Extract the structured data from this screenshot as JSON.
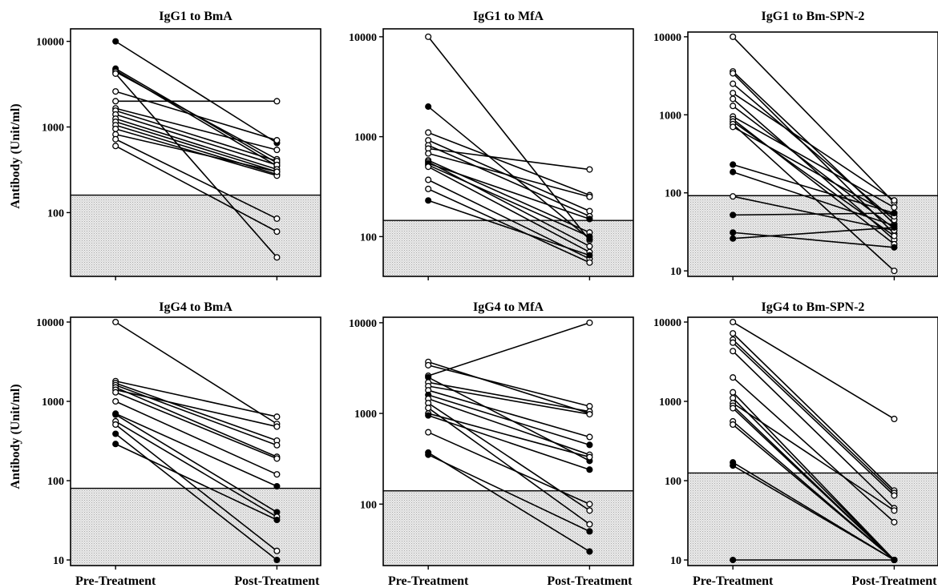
{
  "chart_data": [
    {
      "type": "line",
      "title": "IgG1 to BmA",
      "ylabel": "Antibody (Unit/ml)",
      "xlabel": "",
      "scale": "log",
      "ylim": [
        18,
        14000
      ],
      "yticks": [
        100,
        1000,
        10000
      ],
      "tick_labels": [
        "100",
        "1000",
        "10000"
      ],
      "categories": [
        "Pre-Treatment",
        "Post-Treatment"
      ],
      "show_category_labels": false,
      "cutoff": 160,
      "series": [
        {
          "values": [
            10000,
            650
          ],
          "filled": true
        },
        {
          "values": [
            4800,
            380
          ],
          "filled": true
        },
        {
          "values": [
            4600,
            350
          ],
          "filled": true
        },
        {
          "values": [
            4400,
            420
          ],
          "filled": false
        },
        {
          "values": [
            4200,
            30
          ],
          "filled": false
        },
        {
          "values": [
            2600,
            700
          ],
          "filled": false
        },
        {
          "values": [
            2000,
            2000
          ],
          "filled": false
        },
        {
          "values": [
            1650,
            540
          ],
          "filled": false
        },
        {
          "values": [
            1550,
            400
          ],
          "filled": false
        },
        {
          "values": [
            1400,
            360
          ],
          "filled": false
        },
        {
          "values": [
            1250,
            320
          ],
          "filled": false
        },
        {
          "values": [
            1150,
            300
          ],
          "filled": false
        },
        {
          "values": [
            1050,
            280
          ],
          "filled": false
        },
        {
          "values": [
            950,
            270
          ],
          "filled": false
        },
        {
          "values": [
            820,
            300
          ],
          "filled": false
        },
        {
          "values": [
            720,
            85
          ],
          "filled": false
        },
        {
          "values": [
            600,
            60
          ],
          "filled": false
        }
      ]
    },
    {
      "type": "line",
      "title": "IgG1 to MfA",
      "ylabel": "",
      "xlabel": "",
      "scale": "log",
      "ylim": [
        40,
        12000
      ],
      "yticks": [
        100,
        1000,
        10000
      ],
      "tick_labels": [
        "100",
        "1000",
        "10000"
      ],
      "categories": [
        "Pre-Treatment",
        "Post-Treatment"
      ],
      "show_category_labels": false,
      "cutoff": 145,
      "series": [
        {
          "values": [
            10000,
            92
          ],
          "filled": false
        },
        {
          "values": [
            2000,
            95
          ],
          "filled": true
        },
        {
          "values": [
            1100,
            260
          ],
          "filled": false
        },
        {
          "values": [
            920,
            180
          ],
          "filled": false
        },
        {
          "values": [
            820,
            160
          ],
          "filled": false
        },
        {
          "values": [
            760,
            470
          ],
          "filled": false
        },
        {
          "values": [
            680,
            250
          ],
          "filled": false
        },
        {
          "values": [
            580,
            110
          ],
          "filled": false
        },
        {
          "values": [
            560,
            80
          ],
          "filled": false
        },
        {
          "values": [
            540,
            150
          ],
          "filled": true
        },
        {
          "values": [
            520,
            100
          ],
          "filled": true
        },
        {
          "values": [
            500,
            70
          ],
          "filled": false
        },
        {
          "values": [
            370,
            60
          ],
          "filled": false
        },
        {
          "values": [
            300,
            55
          ],
          "filled": false
        },
        {
          "values": [
            230,
            65
          ],
          "filled": true
        }
      ]
    },
    {
      "type": "line",
      "title": "IgG1 to Bm-SPN-2",
      "ylabel": "",
      "xlabel": "",
      "scale": "log",
      "ylim": [
        8.5,
        11500
      ],
      "yticks": [
        10,
        100,
        1000,
        10000
      ],
      "tick_labels": [
        "10",
        "100",
        "1000",
        "10000"
      ],
      "categories": [
        "Pre-Treatment",
        "Post-Treatment"
      ],
      "show_category_labels": false,
      "cutoff": 92,
      "series": [
        {
          "values": [
            10000,
            75
          ],
          "filled": false
        },
        {
          "values": [
            3600,
            40
          ],
          "filled": false
        },
        {
          "values": [
            3400,
            30
          ],
          "filled": false
        },
        {
          "values": [
            2500,
            45
          ],
          "filled": false
        },
        {
          "values": [
            1900,
            80
          ],
          "filled": false
        },
        {
          "values": [
            1600,
            25
          ],
          "filled": false
        },
        {
          "values": [
            1300,
            35
          ],
          "filled": false
        },
        {
          "values": [
            950,
            65
          ],
          "filled": false
        },
        {
          "values": [
            880,
            22
          ],
          "filled": false
        },
        {
          "values": [
            820,
            28
          ],
          "filled": false
        },
        {
          "values": [
            760,
            10
          ],
          "filled": false
        },
        {
          "values": [
            700,
            50
          ],
          "filled": false
        },
        {
          "values": [
            230,
            55
          ],
          "filled": true
        },
        {
          "values": [
            185,
            38
          ],
          "filled": true
        },
        {
          "values": [
            90,
            33
          ],
          "filled": false
        },
        {
          "values": [
            52,
            55
          ],
          "filled": true
        },
        {
          "values": [
            31,
            20
          ],
          "filled": true
        },
        {
          "values": [
            26,
            36
          ],
          "filled": true
        }
      ]
    },
    {
      "type": "line",
      "title": "IgG4 to BmA",
      "ylabel": "Antibody (Unit/ml)",
      "xlabel": "",
      "scale": "log",
      "ylim": [
        8.5,
        11500
      ],
      "yticks": [
        10,
        100,
        1000,
        10000
      ],
      "tick_labels": [
        "10",
        "100",
        "1000",
        "10000"
      ],
      "categories": [
        "Pre-Treatment",
        "Post-Treatment"
      ],
      "show_category_labels": true,
      "cutoff": 80,
      "series": [
        {
          "values": [
            10000,
            520
          ],
          "filled": false
        },
        {
          "values": [
            1800,
            640
          ],
          "filled": false
        },
        {
          "values": [
            1700,
            320
          ],
          "filled": false
        },
        {
          "values": [
            1600,
            280
          ],
          "filled": false
        },
        {
          "values": [
            1500,
            200
          ],
          "filled": false
        },
        {
          "values": [
            1400,
            480
          ],
          "filled": false
        },
        {
          "values": [
            1300,
            190
          ],
          "filled": false
        },
        {
          "values": [
            1000,
            120
          ],
          "filled": false
        },
        {
          "values": [
            700,
            85
          ],
          "filled": true
        },
        {
          "values": [
            680,
            40
          ],
          "filled": true
        },
        {
          "values": [
            560,
            35
          ],
          "filled": false
        },
        {
          "values": [
            510,
            13
          ],
          "filled": false
        },
        {
          "values": [
            390,
            10
          ],
          "filled": true
        },
        {
          "values": [
            290,
            32
          ],
          "filled": true
        }
      ]
    },
    {
      "type": "line",
      "title": "IgG4 to MfA",
      "ylabel": "",
      "xlabel": "",
      "scale": "log",
      "ylim": [
        21,
        11500
      ],
      "yticks": [
        100,
        1000,
        10000
      ],
      "tick_labels": [
        "100",
        "1000",
        "10000"
      ],
      "categories": [
        "Pre-Treatment",
        "Post-Treatment"
      ],
      "show_category_labels": true,
      "cutoff": 140,
      "series": [
        {
          "values": [
            3700,
            1000
          ],
          "filled": false
        },
        {
          "values": [
            3400,
            1200
          ],
          "filled": false
        },
        {
          "values": [
            2600,
            10000
          ],
          "filled": false
        },
        {
          "values": [
            2500,
            300
          ],
          "filled": true
        },
        {
          "values": [
            2200,
            1050
          ],
          "filled": false
        },
        {
          "values": [
            2000,
            980
          ],
          "filled": false
        },
        {
          "values": [
            1800,
            550
          ],
          "filled": false
        },
        {
          "values": [
            1600,
            450
          ],
          "filled": true
        },
        {
          "values": [
            1450,
            350
          ],
          "filled": false
        },
        {
          "values": [
            1300,
            85
          ],
          "filled": false
        },
        {
          "values": [
            1150,
            60
          ],
          "filled": false
        },
        {
          "values": [
            1000,
            330
          ],
          "filled": false
        },
        {
          "values": [
            950,
            240
          ],
          "filled": true
        },
        {
          "values": [
            620,
            100
          ],
          "filled": false
        },
        {
          "values": [
            370,
            30
          ],
          "filled": true
        },
        {
          "values": [
            350,
            50
          ],
          "filled": true
        }
      ]
    },
    {
      "type": "line",
      "title": "IgG4 to Bm-SPN-2",
      "ylabel": "",
      "xlabel": "",
      "scale": "log",
      "ylim": [
        8.5,
        11500
      ],
      "yticks": [
        10,
        100,
        1000,
        10000
      ],
      "tick_labels": [
        "10",
        "100",
        "1000",
        "10000"
      ],
      "categories": [
        "Pre-Treatment",
        "Post-Treatment"
      ],
      "show_category_labels": true,
      "cutoff": 125,
      "series": [
        {
          "values": [
            10000,
            600
          ],
          "filled": false
        },
        {
          "values": [
            7200,
            75
          ],
          "filled": false
        },
        {
          "values": [
            6000,
            70
          ],
          "filled": false
        },
        {
          "values": [
            5500,
            65
          ],
          "filled": false
        },
        {
          "values": [
            4300,
            45
          ],
          "filled": false
        },
        {
          "values": [
            2000,
            30
          ],
          "filled": false
        },
        {
          "values": [
            1300,
            10
          ],
          "filled": false
        },
        {
          "values": [
            1100,
            10
          ],
          "filled": false
        },
        {
          "values": [
            950,
            42
          ],
          "filled": false
        },
        {
          "values": [
            880,
            10
          ],
          "filled": false
        },
        {
          "values": [
            820,
            10
          ],
          "filled": false
        },
        {
          "values": [
            560,
            10
          ],
          "filled": false
        },
        {
          "values": [
            510,
            10
          ],
          "filled": false
        },
        {
          "values": [
            170,
            10
          ],
          "filled": true
        },
        {
          "values": [
            155,
            10
          ],
          "filled": true
        },
        {
          "values": [
            10,
            10
          ],
          "filled": true
        }
      ]
    }
  ]
}
